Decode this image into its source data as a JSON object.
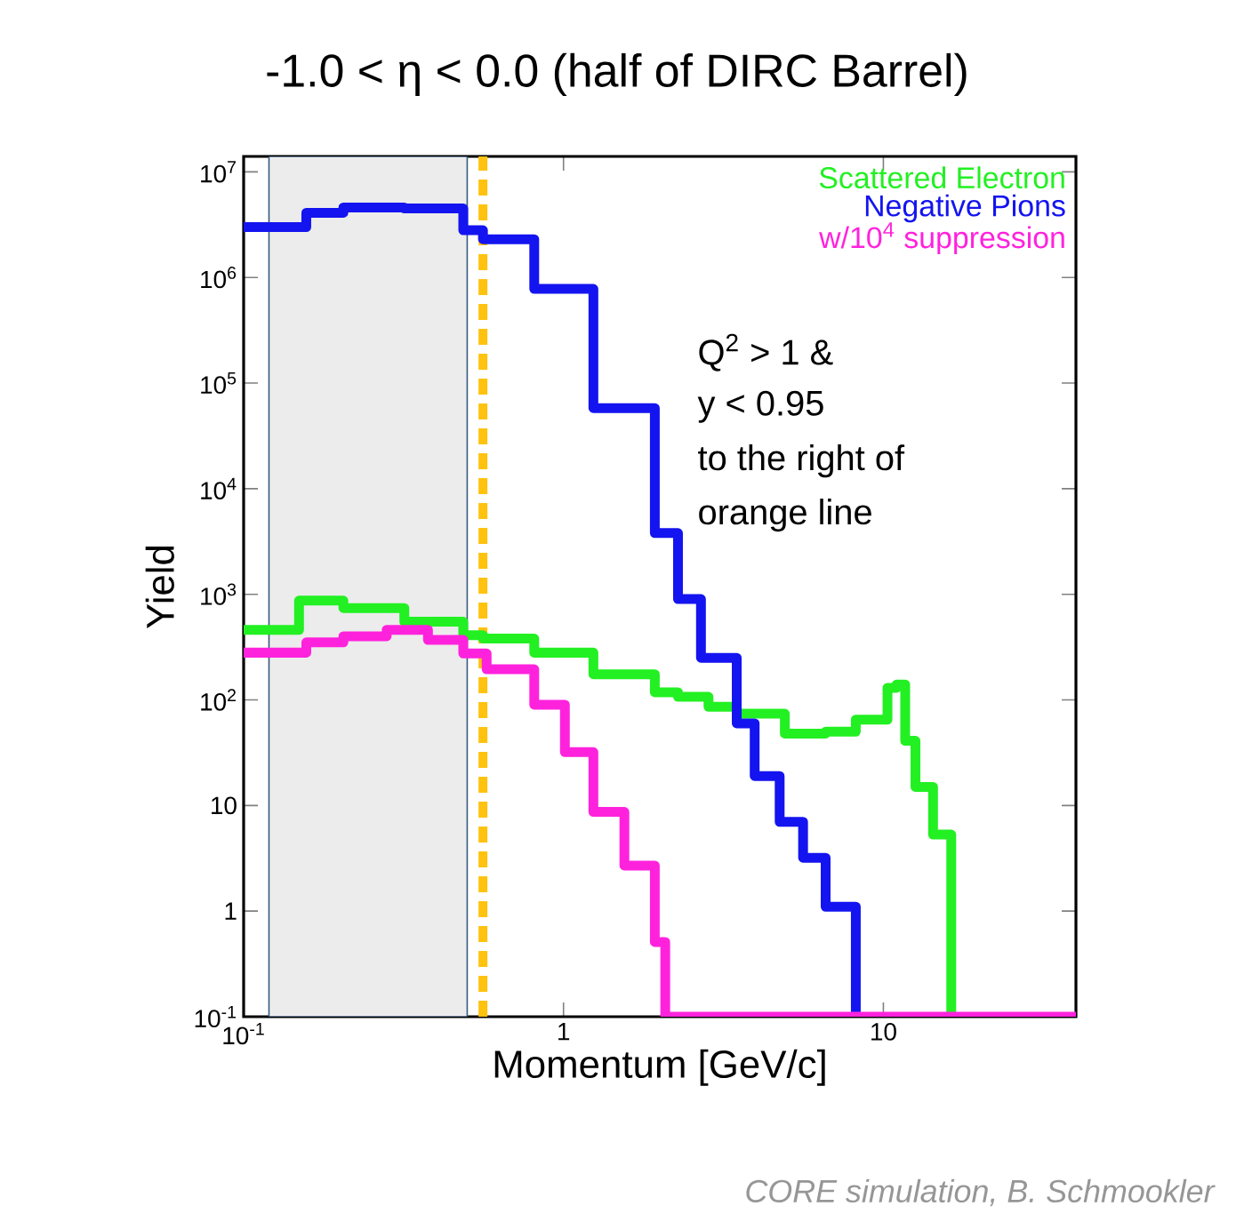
{
  "chart_data": {
    "type": "step",
    "title": "-1.0 < η < 0.0 (half of DIRC Barrel)",
    "xlabel": "Momentum [GeV/c]",
    "ylabel": "Yield",
    "log": "xy",
    "xlim": [
      0.1,
      40
    ],
    "ylim": [
      0.1,
      14000000
    ],
    "xticks": [
      {
        "value": 0.1,
        "label": "10$^{-1}$"
      },
      1,
      10
    ],
    "yticks": [
      {
        "value": 0.1,
        "label": "10$^{-1}$"
      },
      1,
      10,
      {
        "value": 100,
        "label": "10$^{2}$"
      },
      {
        "value": 1000,
        "label": "10$^{3}$"
      },
      {
        "value": 10000,
        "label": "10$^{4}$"
      },
      {
        "value": 100000,
        "label": "10$^{5}$"
      },
      {
        "value": 1000000,
        "label": "10$^{6}$"
      },
      {
        "value": 10000000,
        "label": "10$^{7}$"
      }
    ],
    "legend": "top right",
    "series": [
      {
        "name": "Scattered Electron",
        "color": "#22f022",
        "x": [
          0.1,
          0.149,
          0.205,
          0.318,
          0.486,
          0.56,
          0.81,
          1.24,
          1.93,
          2.28,
          2.84,
          3.48,
          4.92,
          6.6,
          8.2,
          10.3,
          11,
          11.7,
          12.6,
          14.3,
          16.3
        ],
        "values": [
          460,
          870,
          740,
          550,
          410,
          380,
          280,
          175,
          118,
          107,
          86,
          74,
          48,
          50,
          65,
          130,
          140,
          41,
          15,
          5.3,
          0.1
        ]
      },
      {
        "name": "Negative Pions",
        "color": "#1414f0",
        "x": [
          0.1,
          0.157,
          0.205,
          0.318,
          0.486,
          0.56,
          0.81,
          1.24,
          1.93,
          2.28,
          2.69,
          3.48,
          3.96,
          4.74,
          5.61,
          6.6,
          8.2
        ],
        "values": [
          3000000,
          4100000,
          4600000,
          4500000,
          2800000,
          2300000,
          780000,
          58000,
          3800,
          900,
          250,
          60,
          19,
          7,
          3.2,
          1.1,
          0.1
        ]
      },
      {
        "name": "w/10$^{4}$ suppression",
        "color": "#ff22dd",
        "x": [
          0.1,
          0.157,
          0.205,
          0.28,
          0.377,
          0.486,
          0.575,
          0.81,
          1.01,
          1.24,
          1.55,
          1.93,
          2.08,
          40
        ],
        "values": [
          280,
          350,
          400,
          460,
          370,
          275,
          195,
          90,
          32,
          8.7,
          2.7,
          0.51,
          0.1,
          0.1
        ]
      }
    ],
    "bands": [
      {
        "axis": "x",
        "from": 0.12,
        "to": 0.5,
        "color": "#ececec"
      }
    ],
    "ref_lines": [
      {
        "axis": "x",
        "value": 0.56,
        "color": "#ffc20e",
        "line_style": "dashed"
      }
    ],
    "annotations": [
      "Q$^{2}$ > 1 &",
      "y < 0.95",
      "to the right of",
      "orange line",
      "CORE simulation, B. Schmookler"
    ]
  }
}
